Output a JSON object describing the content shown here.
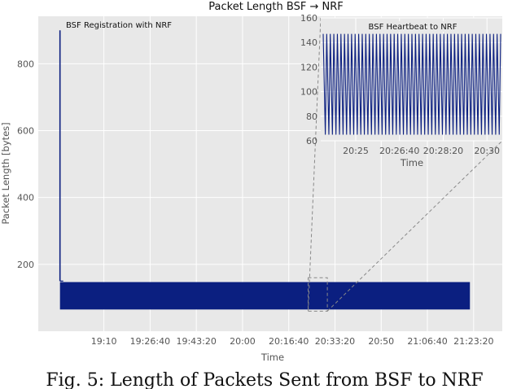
{
  "chart_data": {
    "type": "line",
    "title": "Packet Length BSF → NRF",
    "xlabel": "Time",
    "ylabel": "Packet Length [bytes]",
    "x_ticks": [
      "19:10",
      "19:26:40",
      "19:43:20",
      "20:00",
      "20:16:40",
      "20:33:20",
      "20:50",
      "21:06:40",
      "21:23:20"
    ],
    "x_tick_seconds": [
      69000,
      70000,
      71000,
      72000,
      73000,
      74000,
      75000,
      76000,
      77000
    ],
    "y_ticks": [
      200,
      400,
      600,
      800
    ],
    "xlim_seconds": [
      67580,
      77620
    ],
    "ylim": [
      0,
      942
    ],
    "grid": true,
    "series": [
      {
        "color": "#0b1f80",
        "registration_spike": {
          "time_seconds": 68050,
          "max": 900,
          "min": 150
        },
        "heartbeat_range": {
          "start_seconds": 68050,
          "end_seconds": 76920,
          "min": 65,
          "max": 147
        }
      }
    ],
    "annotations": [
      {
        "text": "BSF Registration with NRF"
      },
      {
        "text": "BSF Heartbeat to NRF"
      }
    ],
    "inset": {
      "xlabel": "Time",
      "x_ticks": [
        "20:25",
        "20:26:40",
        "20:28:20",
        "20:30"
      ],
      "x_tick_seconds": [
        73500,
        73600,
        73700,
        73800
      ],
      "y_ticks": [
        60,
        80,
        100,
        120,
        140,
        160
      ],
      "xlim_seconds": [
        73420,
        73835
      ],
      "ylim": [
        60,
        160
      ],
      "heartbeat_min": 65,
      "heartbeat_max": 147,
      "cycles": 50
    },
    "zoom_box": {
      "x_start_seconds": 73420,
      "x_end_seconds": 73835,
      "y_min": 60,
      "y_max": 160
    }
  },
  "caption": "Fig. 5: Length of Packets Sent from BSF to NRF"
}
